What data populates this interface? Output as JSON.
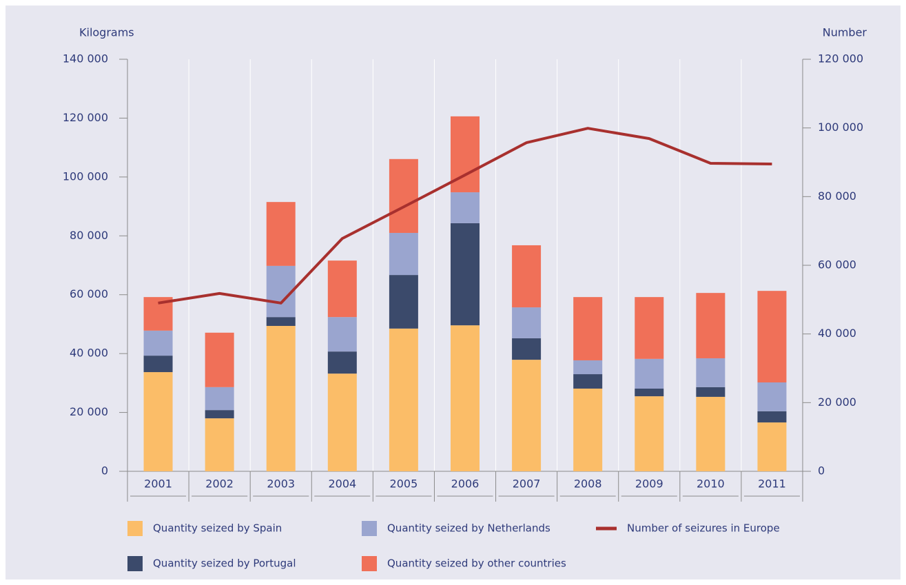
{
  "chart_data": {
    "type": "bar",
    "stacked": true,
    "y_label": "Kilograms",
    "y2_label": "Number",
    "categories": [
      "2001",
      "2002",
      "2003",
      "2004",
      "2005",
      "2006",
      "2007",
      "2008",
      "2009",
      "2010",
      "2011"
    ],
    "series": [
      {
        "name": "Quantity seized by Spain",
        "color": "#fbbd68",
        "values": [
          33700,
          18000,
          49400,
          33200,
          48500,
          49600,
          37900,
          28100,
          25500,
          25300,
          16600
        ]
      },
      {
        "name": "Quantity seized by Portugal",
        "color": "#3b4a6b",
        "values": [
          5600,
          2800,
          3000,
          7500,
          18200,
          34700,
          7300,
          4900,
          2600,
          3300,
          3800
        ]
      },
      {
        "name": "Quantity seized by Netherlands",
        "color": "#9aa5cf",
        "values": [
          8500,
          7800,
          17400,
          11700,
          14300,
          10500,
          10500,
          4700,
          10100,
          9800,
          9800
        ]
      },
      {
        "name": "Quantity seized by other countries",
        "color": "#f07058",
        "values": [
          11400,
          18500,
          21700,
          19200,
          25100,
          25800,
          21100,
          21500,
          21000,
          22200,
          31100
        ]
      },
      {
        "name": "Number of seizures in Europe",
        "type": "line",
        "axis": "y2",
        "color": "#a8302e",
        "values": [
          49000,
          51800,
          49000,
          67800,
          77000,
          86300,
          95700,
          99900,
          96900,
          89700,
          89500
        ]
      }
    ],
    "ylim": [
      0,
      140000
    ],
    "yticks": [
      0,
      {
        "value": 20000,
        "label": "20 000"
      },
      {
        "value": 40000,
        "label": "40 000"
      },
      {
        "value": 60000,
        "label": "60 000"
      },
      {
        "value": 80000,
        "label": "80 000"
      },
      {
        "value": 100000,
        "label": "100 000"
      },
      {
        "value": 120000,
        "label": "120 000"
      },
      {
        "value": 140000,
        "label": "140 000"
      }
    ],
    "y2lim": [
      0,
      120000
    ],
    "y2ticks": [
      0,
      {
        "value": 20000,
        "label": "20 000"
      },
      {
        "value": 40000,
        "label": "40 000"
      },
      {
        "value": 60000,
        "label": "60 000"
      },
      {
        "value": 80000,
        "label": "80 000"
      },
      {
        "value": 100000,
        "label": "100 000"
      },
      {
        "value": 120000,
        "label": "120 000"
      }
    ],
    "grid": true
  }
}
